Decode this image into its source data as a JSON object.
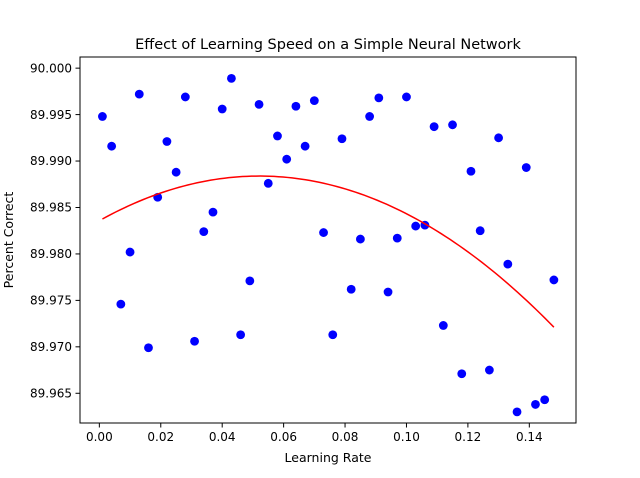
{
  "chart_data": {
    "type": "scatter",
    "title": "Effect of Learning Speed on a Simple Neural Network",
    "xlabel": "Learning Rate",
    "ylabel": "Percent Correct",
    "xlim": [
      -0.0063,
      0.1552
    ],
    "ylim": [
      89.9618,
      90.0012
    ],
    "grid": false,
    "xticks": [
      0.0,
      0.02,
      0.04,
      0.06,
      0.08,
      0.1,
      0.12,
      0.14
    ],
    "xtick_labels": [
      "0.00",
      "0.02",
      "0.04",
      "0.06",
      "0.08",
      "0.10",
      "0.12",
      "0.14"
    ],
    "yticks": [
      89.965,
      89.97,
      89.975,
      89.98,
      89.985,
      89.99,
      89.995,
      90.0
    ],
    "ytick_labels": [
      "89.965",
      "89.970",
      "89.975",
      "89.980",
      "89.985",
      "89.990",
      "89.995",
      "90.000"
    ],
    "series": [
      {
        "type": "scatter",
        "color": "#0000ff",
        "points": [
          [
            0.001,
            89.9948
          ],
          [
            0.004,
            89.9916
          ],
          [
            0.007,
            89.9746
          ],
          [
            0.01,
            89.9802
          ],
          [
            0.013,
            89.9972
          ],
          [
            0.016,
            89.9699
          ],
          [
            0.019,
            89.9861
          ],
          [
            0.022,
            89.9921
          ],
          [
            0.025,
            89.9888
          ],
          [
            0.028,
            89.9969
          ],
          [
            0.031,
            89.9706
          ],
          [
            0.034,
            89.9824
          ],
          [
            0.037,
            89.9845
          ],
          [
            0.04,
            89.9956
          ],
          [
            0.043,
            89.9989
          ],
          [
            0.046,
            89.9713
          ],
          [
            0.049,
            89.9771
          ],
          [
            0.052,
            89.9961
          ],
          [
            0.055,
            89.9876
          ],
          [
            0.058,
            89.9927
          ],
          [
            0.061,
            89.9902
          ],
          [
            0.064,
            89.9959
          ],
          [
            0.067,
            89.9916
          ],
          [
            0.07,
            89.9965
          ],
          [
            0.073,
            89.9823
          ],
          [
            0.076,
            89.9713
          ],
          [
            0.079,
            89.9924
          ],
          [
            0.082,
            89.9762
          ],
          [
            0.085,
            89.9816
          ],
          [
            0.088,
            89.9948
          ],
          [
            0.091,
            89.9968
          ],
          [
            0.094,
            89.9759
          ],
          [
            0.097,
            89.9817
          ],
          [
            0.1,
            89.9969
          ],
          [
            0.103,
            89.983
          ],
          [
            0.106,
            89.9831
          ],
          [
            0.109,
            89.9937
          ],
          [
            0.112,
            89.9723
          ],
          [
            0.115,
            89.9939
          ],
          [
            0.118,
            89.9671
          ],
          [
            0.121,
            89.9889
          ],
          [
            0.124,
            89.9825
          ],
          [
            0.127,
            89.9675
          ],
          [
            0.13,
            89.9925
          ],
          [
            0.133,
            89.9789
          ],
          [
            0.136,
            89.963
          ],
          [
            0.139,
            89.9893
          ],
          [
            0.142,
            89.9638
          ],
          [
            0.145,
            89.9643
          ],
          [
            0.148,
            89.9772
          ]
        ]
      },
      {
        "type": "line",
        "color": "#ff0000",
        "fit": "quadratic",
        "coefficients": [
          89.98358,
          0.18438,
          -1.76935
        ],
        "x_range": [
          0.001,
          0.148
        ]
      }
    ]
  }
}
